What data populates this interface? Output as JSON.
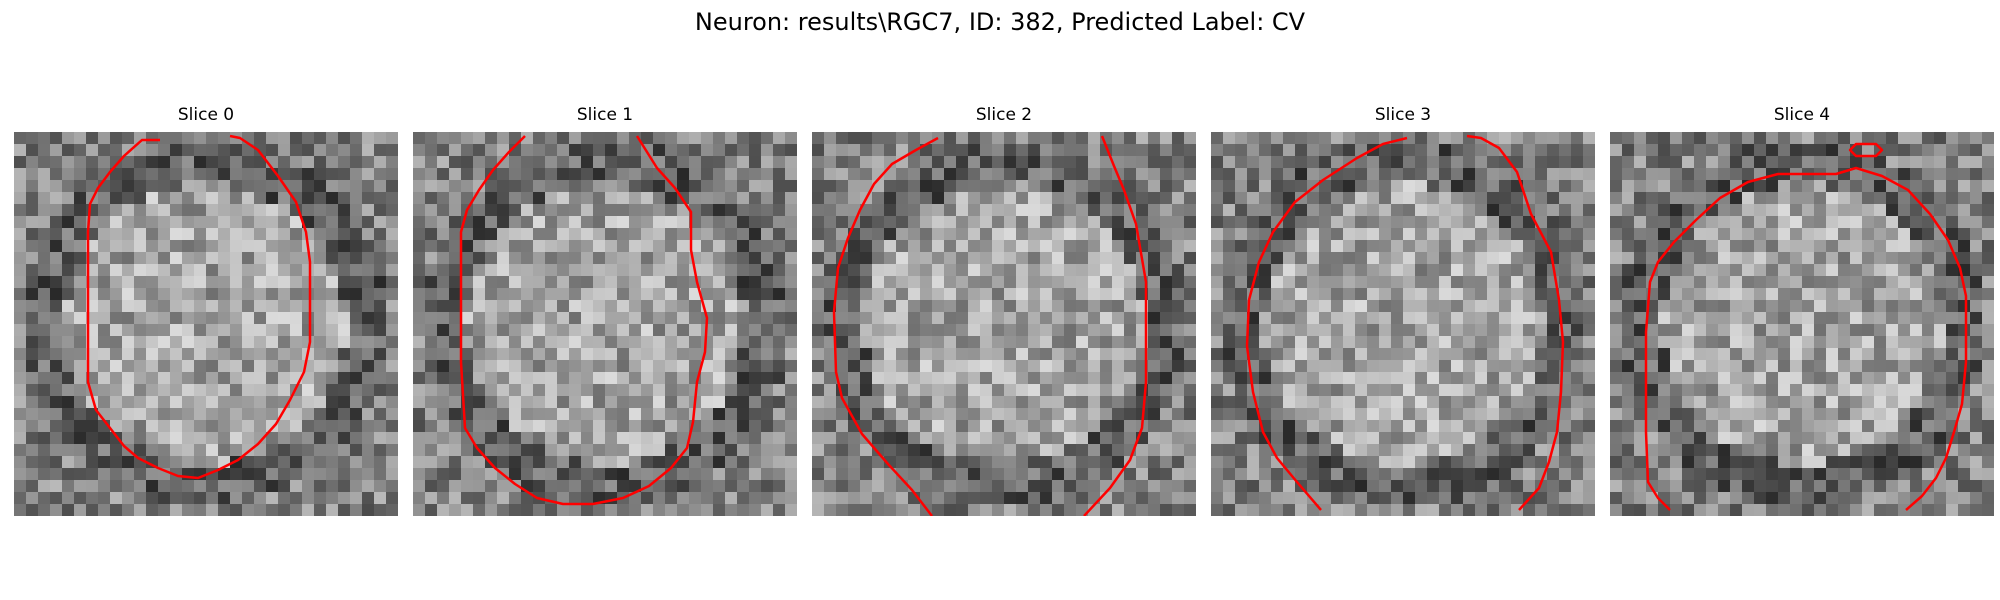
{
  "figure": {
    "title": "Neuron: results\\RGC7, ID: 382, Predicted Label: CV"
  },
  "colors": {
    "contour": "#ff0000",
    "background": "#ffffff"
  },
  "slices": [
    {
      "title": "Slice 0",
      "seed": 11
    },
    {
      "title": "Slice 1",
      "seed": 23
    },
    {
      "title": "Slice 2",
      "seed": 37
    },
    {
      "title": "Slice 3",
      "seed": 51
    },
    {
      "title": "Slice 4",
      "seed": 67
    }
  ]
}
